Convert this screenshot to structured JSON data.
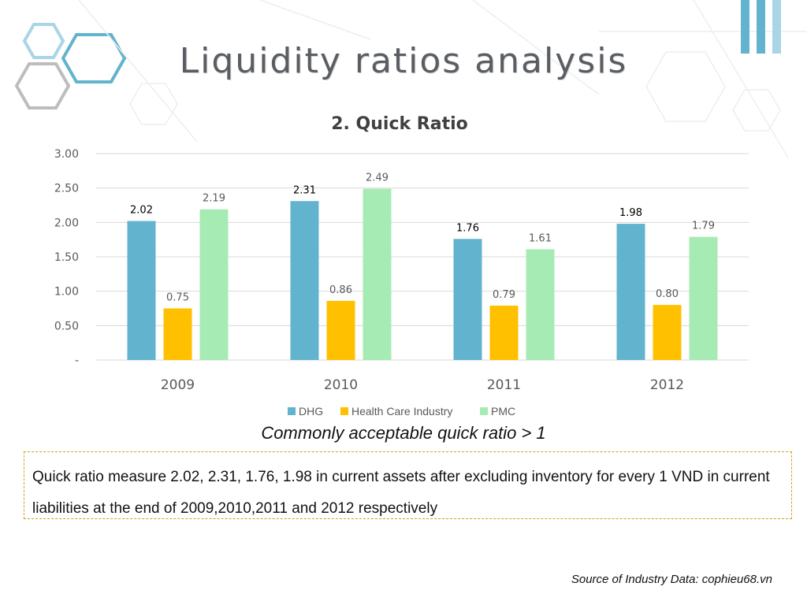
{
  "slide": {
    "title": "Liquidity ratios analysis",
    "note": "Commonly acceptable quick ratio > 1",
    "body": "Quick ratio measure 2.02, 2.31, 1.76, 1.98 in current assets after excluding inventory for every 1 VND in current liabilities at the end of 2009,2010,2011 and 2012 respectively",
    "source": "Source of Industry Data: cophieu68.vn"
  },
  "colors": {
    "title": "#5a5e63",
    "accent_blue": "#62b3cd",
    "accent_light": "#a9d5e6"
  },
  "chart_data": {
    "type": "bar",
    "title": "2. Quick Ratio",
    "categories": [
      "2009",
      "2010",
      "2011",
      "2012"
    ],
    "series": [
      {
        "name": "DHG",
        "values": [
          2.02,
          2.31,
          1.76,
          1.98
        ],
        "color": "#62b3cd",
        "labels": [
          "2.02",
          "2.31",
          "1.76",
          "1.98"
        ]
      },
      {
        "name": "Health Care Industry",
        "values": [
          0.75,
          0.86,
          0.79,
          0.8
        ],
        "color": "#ffc000",
        "labels": [
          "0.75",
          "0.86",
          "0.79",
          "0.80"
        ]
      },
      {
        "name": "PMC",
        "values": [
          2.19,
          2.49,
          1.61,
          1.79
        ],
        "color": "#a6ebb3",
        "labels": [
          "2.19",
          "2.49",
          "1.61",
          "1.79"
        ]
      }
    ],
    "yticks": [
      "-",
      "0.50",
      "1.00",
      "1.50",
      "2.00",
      "2.50",
      "3.00"
    ],
    "ylim": [
      0,
      3
    ],
    "grid": true,
    "legend": "bottom",
    "xlabel": "",
    "ylabel": ""
  }
}
